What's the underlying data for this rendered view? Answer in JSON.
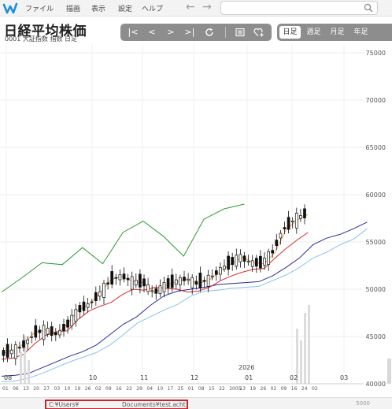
{
  "menu": {
    "items": [
      "ファイル",
      "描画",
      "表示",
      "設定",
      "ヘルプ"
    ],
    "back": "←",
    "forward": "→"
  },
  "header": {
    "title": "日経平均株価",
    "subtitle": "0001 大証指数 指数 日足"
  },
  "toolbar": {
    "first": "|<",
    "prev": "<",
    "next": ">",
    "last": ">|"
  },
  "periods": {
    "daily": "日足",
    "weekly": "週足",
    "monthly": "月足",
    "yearly": "年足"
  },
  "status": {
    "path_start": "C:¥Users¥",
    "path_end": "Documents¥test.acht",
    "right": "5000"
  },
  "colors": {
    "accent": "#1e8fd6",
    "toolbar": "#8d8d8d",
    "status_highlight": "#d0202b"
  },
  "chart_data": {
    "type": "candlestick",
    "title": "日経平均株価",
    "ylim": [
      40000,
      76000
    ],
    "yticks": [
      75000,
      70000,
      65000,
      60000,
      55000,
      50000,
      45000,
      40000
    ],
    "year_label": "2026",
    "month_labels": [
      "08",
      "10",
      "11",
      "12",
      "01",
      "02",
      "03"
    ],
    "day_labels": [
      "01",
      "06",
      "13",
      "20",
      "27",
      "03",
      "10",
      "19",
      "26",
      "02",
      "09",
      "16",
      "22",
      "29",
      "04",
      "10",
      "17",
      "25",
      "01",
      "08",
      "15",
      "22",
      "2005",
      "13",
      "19",
      "26",
      "02",
      "09",
      "16",
      "24",
      "02"
    ],
    "tenkan": [
      43200,
      43500,
      44200,
      45400,
      45700,
      45200,
      46300,
      47800,
      48400,
      49600,
      51000,
      51400,
      50800,
      50700,
      49600,
      50400,
      50800,
      51100,
      50600,
      51000,
      51900,
      52700,
      53400,
      52800,
      52700,
      53900,
      56300,
      57300,
      57900
    ],
    "kijun": [
      42600,
      42700,
      43100,
      44200,
      45100,
      45500,
      45600,
      46800,
      47700,
      48200,
      48600,
      49400,
      50000,
      49900,
      50200,
      50100,
      50000,
      49700,
      49800,
      50200,
      50900,
      51400,
      51800,
      52100,
      52200,
      53300,
      54300,
      55200,
      56000
    ],
    "span_a": [
      40800,
      40900,
      41100,
      41700,
      42300,
      42900,
      43400,
      44100,
      45200,
      46300,
      47100,
      48300,
      49300,
      49800,
      50000,
      50200,
      50500,
      50600,
      50700,
      50800,
      51400,
      52300,
      53300,
      54700,
      55400,
      55800,
      56400,
      57100
    ],
    "span_b": [
      40200,
      40300,
      40600,
      41100,
      41700,
      42300,
      42800,
      43300,
      44100,
      45200,
      46400,
      47100,
      47800,
      48400,
      49300,
      49800,
      49900,
      50100,
      50200,
      50300,
      50900,
      51500,
      52300,
      53300,
      53900,
      54700,
      55300,
      56400
    ],
    "chikou": [
      49700,
      51200,
      52800,
      52600,
      54400,
      52700,
      56000,
      57200,
      55600,
      53500,
      57400,
      58500,
      59000
    ]
  }
}
